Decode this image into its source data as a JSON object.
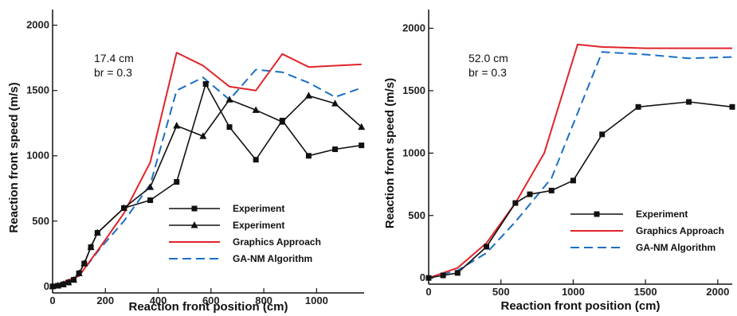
{
  "chart_data": [
    {
      "type": "line",
      "xlabel": "Reaction front position (cm)",
      "ylabel": "Reaction front speed (m/s)",
      "xlim": [
        0,
        1180
      ],
      "ylim": [
        -50,
        2120
      ],
      "xticks": [
        0,
        200,
        400,
        600,
        800,
        1000
      ],
      "yticks": [
        0,
        500,
        1000,
        1500,
        2000
      ],
      "annotation": [
        "17.4 cm",
        "br = 0.3"
      ],
      "legend_position": "lower-right",
      "series": [
        {
          "name": "Experiment",
          "color": "#111111",
          "dash": "solid",
          "marker": "square",
          "points": [
            [
              0,
              0
            ],
            [
              20,
              5
            ],
            [
              40,
              15
            ],
            [
              60,
              30
            ],
            [
              80,
              50
            ],
            [
              100,
              100
            ],
            [
              120,
              175
            ],
            [
              145,
              300
            ],
            [
              170,
              410
            ],
            [
              270,
              600
            ],
            [
              370,
              660
            ],
            [
              470,
              800
            ],
            [
              580,
              1550
            ],
            [
              670,
              1220
            ],
            [
              770,
              970
            ],
            [
              870,
              1270
            ],
            [
              970,
              1000
            ],
            [
              1070,
              1050
            ],
            [
              1170,
              1080
            ]
          ]
        },
        {
          "name": "Experiment",
          "color": "#111111",
          "dash": "solid",
          "marker": "triangle",
          "points": [
            [
              0,
              0
            ],
            [
              20,
              5
            ],
            [
              40,
              15
            ],
            [
              60,
              30
            ],
            [
              80,
              50
            ],
            [
              100,
              100
            ],
            [
              120,
              175
            ],
            [
              145,
              300
            ],
            [
              170,
              410
            ],
            [
              270,
              600
            ],
            [
              370,
              760
            ],
            [
              470,
              1230
            ],
            [
              570,
              1150
            ],
            [
              670,
              1430
            ],
            [
              770,
              1350
            ],
            [
              870,
              1260
            ],
            [
              970,
              1460
            ],
            [
              1070,
              1400
            ],
            [
              1170,
              1220
            ]
          ]
        },
        {
          "name": "Graphics Approach",
          "color": "#e0242b",
          "dash": "solid",
          "marker": "none",
          "points": [
            [
              0,
              0
            ],
            [
              100,
              80
            ],
            [
              180,
              300
            ],
            [
              270,
              560
            ],
            [
              370,
              950
            ],
            [
              470,
              1790
            ],
            [
              570,
              1690
            ],
            [
              670,
              1530
            ],
            [
              770,
              1500
            ],
            [
              870,
              1780
            ],
            [
              970,
              1680
            ],
            [
              1070,
              1690
            ],
            [
              1170,
              1700
            ]
          ]
        },
        {
          "name": "GA-NM Algorithm",
          "color": "#1a6fc4",
          "dash": "dashed",
          "marker": "none",
          "points": [
            [
              0,
              0
            ],
            [
              100,
              80
            ],
            [
              180,
              290
            ],
            [
              270,
              500
            ],
            [
              370,
              780
            ],
            [
              470,
              1500
            ],
            [
              570,
              1600
            ],
            [
              670,
              1430
            ],
            [
              770,
              1660
            ],
            [
              870,
              1640
            ],
            [
              970,
              1560
            ],
            [
              1070,
              1450
            ],
            [
              1170,
              1520
            ]
          ]
        }
      ]
    },
    {
      "type": "line",
      "xlabel": "Reaction front position (cm)",
      "ylabel": "Reaction front speed (m/s)",
      "xlim": [
        0,
        2100
      ],
      "ylim": [
        -50,
        2150
      ],
      "xticks": [
        0,
        500,
        1000,
        1500,
        2000
      ],
      "yticks": [
        0,
        500,
        1000,
        1500,
        2000
      ],
      "annotation": [
        "52.0 cm",
        "br = 0.3"
      ],
      "legend_position": "lower-right",
      "series": [
        {
          "name": "Experiment",
          "color": "#111111",
          "dash": "solid",
          "marker": "square",
          "points": [
            [
              0,
              0
            ],
            [
              100,
              20
            ],
            [
              200,
              40
            ],
            [
              400,
              250
            ],
            [
              600,
              600
            ],
            [
              700,
              670
            ],
            [
              850,
              700
            ],
            [
              1000,
              780
            ],
            [
              1200,
              1150
            ],
            [
              1450,
              1370
            ],
            [
              1800,
              1410
            ],
            [
              2100,
              1370
            ]
          ]
        },
        {
          "name": "Graphics Approach",
          "color": "#e0242b",
          "dash": "solid",
          "marker": "none",
          "points": [
            [
              0,
              0
            ],
            [
              200,
              80
            ],
            [
              400,
              280
            ],
            [
              600,
              600
            ],
            [
              800,
              1000
            ],
            [
              1030,
              1870
            ],
            [
              1200,
              1850
            ],
            [
              1500,
              1840
            ],
            [
              1800,
              1840
            ],
            [
              2100,
              1840
            ]
          ]
        },
        {
          "name": "GA-NM Algorithm",
          "color": "#1a6fc4",
          "dash": "dashed",
          "marker": "none",
          "points": [
            [
              0,
              0
            ],
            [
              200,
              60
            ],
            [
              400,
              200
            ],
            [
              600,
              450
            ],
            [
              850,
              800
            ],
            [
              1200,
              1810
            ],
            [
              1500,
              1790
            ],
            [
              1800,
              1760
            ],
            [
              2100,
              1770
            ]
          ]
        }
      ]
    }
  ]
}
